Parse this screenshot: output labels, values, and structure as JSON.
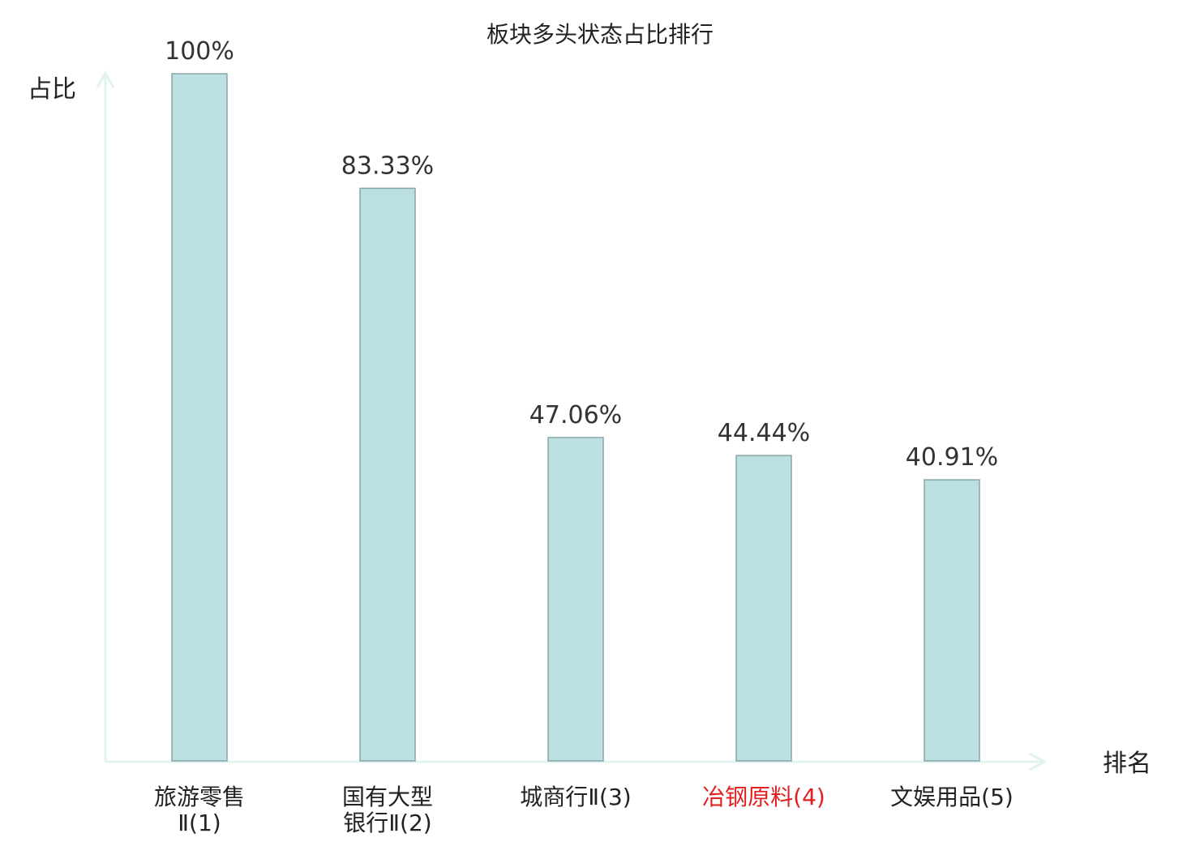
{
  "chart_data": {
    "type": "bar",
    "title": "板块多头状态占比排行",
    "ylabel": "占比",
    "xlabel": "排名",
    "ylim": [
      0,
      100
    ],
    "grid": false,
    "categories": [
      [
        "旅游零售",
        "Ⅱ(1)"
      ],
      [
        "国有大型",
        "银行Ⅱ(2)"
      ],
      [
        "城商行Ⅱ(3)"
      ],
      [
        "冶钢原料(4)"
      ],
      [
        "文娱用品(5)"
      ]
    ],
    "values": [
      100,
      83.33,
      47.06,
      44.44,
      40.91
    ],
    "data_labels": [
      "100%",
      "83.33%",
      "47.06%",
      "44.44%",
      "40.91%"
    ],
    "highlight_index": 3,
    "colors": {
      "bar_fill": "#bce0e2",
      "bar_stroke": "#86a7a9",
      "axis": "#e0f3f1",
      "text": "#222222",
      "label_text": "#333333",
      "highlight_text": "#e02020"
    }
  }
}
